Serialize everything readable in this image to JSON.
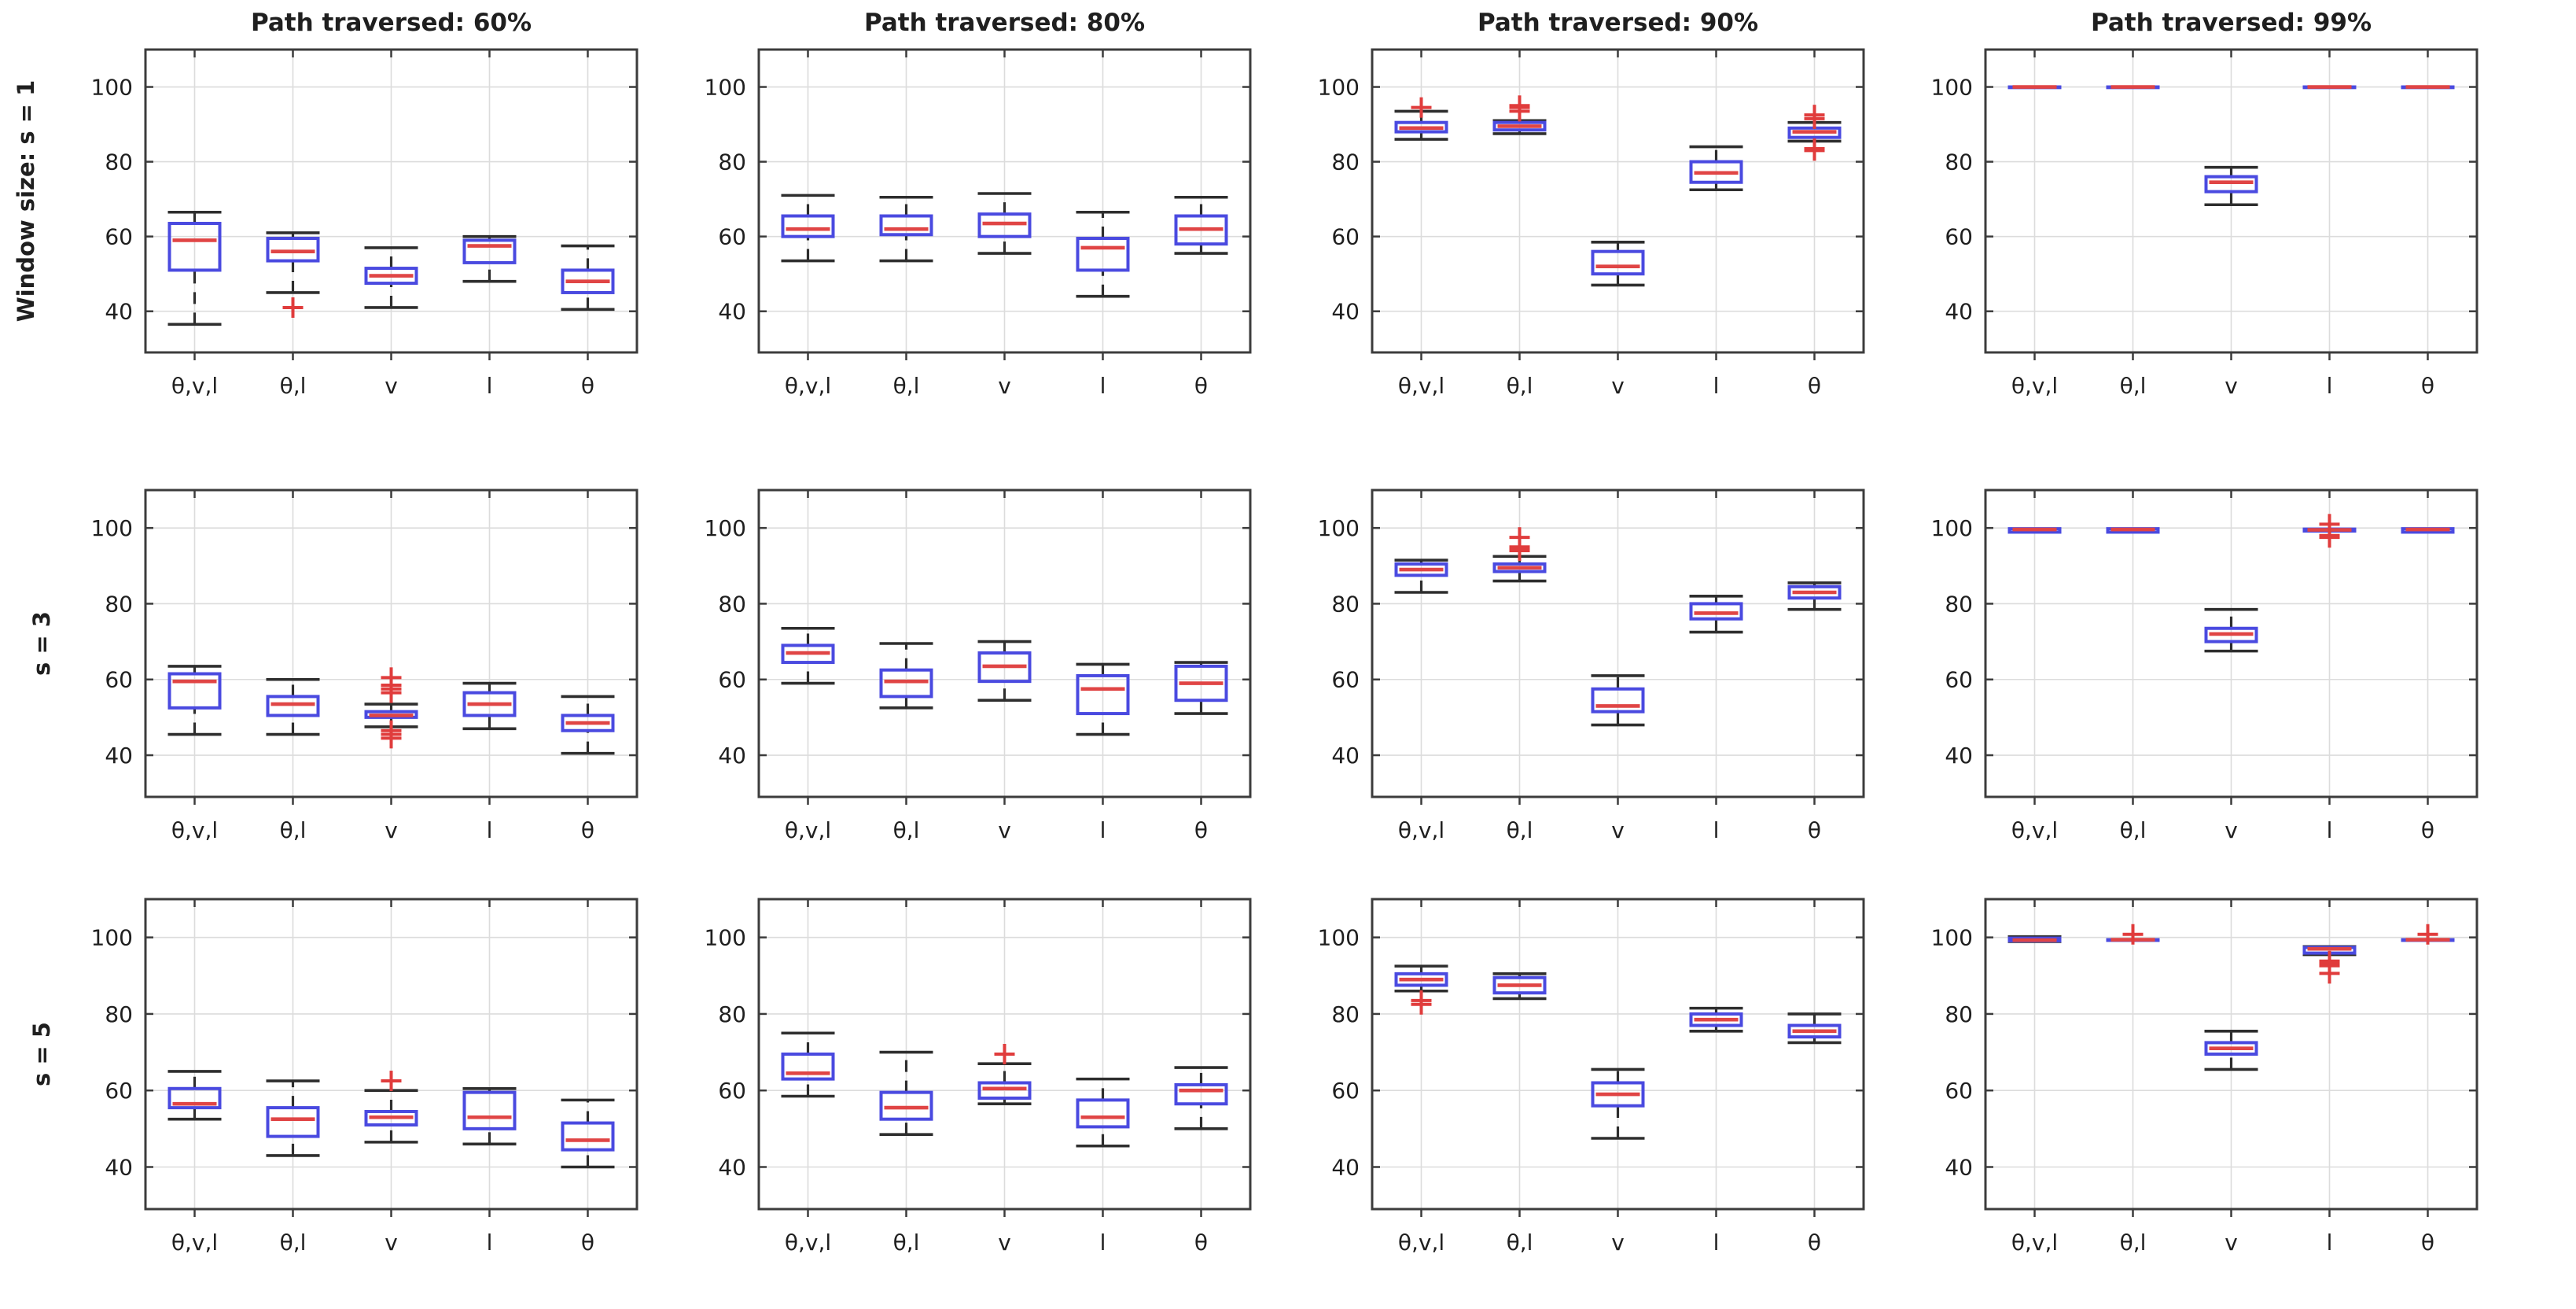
{
  "figure": {
    "background": "#ffffff"
  },
  "chart_data": {
    "type": "boxplot",
    "layout": "3x4 grid of subplots",
    "col_titles": [
      "Path traversed: 60%",
      "Path traversed: 80%",
      "Path traversed: 90%",
      "Path traversed: 99%"
    ],
    "row_labels": [
      "Window size: s = 1",
      "s = 3",
      "s = 5"
    ],
    "categories": [
      "θ,v,l",
      "θ,l",
      "v",
      "l",
      "θ"
    ],
    "ylim": [
      29,
      110
    ],
    "yticks": [
      40,
      60,
      80,
      100
    ],
    "grid": true,
    "colors": {
      "box": "#4a4ae0",
      "median": "#e04545",
      "whisker": "#2e2e2e",
      "cap": "#2e2e2e",
      "outlier": "#e03c3c",
      "gridline": "#dcdcdc",
      "axis": "#3c3c3c",
      "text": "#1f1f1f"
    },
    "subplots": [
      {
        "row": 0,
        "col": 0,
        "row_label": "Window size: s = 1",
        "title": "Path traversed: 60%",
        "boxes": [
          {
            "category": "θ,v,l",
            "lo": 36.5,
            "q1": 51.0,
            "med": 59.0,
            "q3": 63.5,
            "hi": 66.5,
            "out": []
          },
          {
            "category": "θ,l",
            "lo": 45.0,
            "q1": 53.5,
            "med": 56.0,
            "q3": 59.5,
            "hi": 61.0,
            "out": [
              41.0
            ]
          },
          {
            "category": "v",
            "lo": 41.0,
            "q1": 47.5,
            "med": 49.5,
            "q3": 51.5,
            "hi": 57.0,
            "out": []
          },
          {
            "category": "l",
            "lo": 48.0,
            "q1": 53.0,
            "med": 57.5,
            "q3": 59.0,
            "hi": 60.0,
            "out": []
          },
          {
            "category": "θ",
            "lo": 40.5,
            "q1": 45.0,
            "med": 48.0,
            "q3": 51.0,
            "hi": 57.5,
            "out": []
          }
        ]
      },
      {
        "row": 0,
        "col": 1,
        "row_label": "Window size: s = 1",
        "title": "Path traversed: 80%",
        "boxes": [
          {
            "category": "θ,v,l",
            "lo": 53.5,
            "q1": 60.0,
            "med": 62.0,
            "q3": 65.5,
            "hi": 71.0,
            "out": []
          },
          {
            "category": "θ,l",
            "lo": 53.5,
            "q1": 60.5,
            "med": 62.0,
            "q3": 65.5,
            "hi": 70.5,
            "out": []
          },
          {
            "category": "v",
            "lo": 55.5,
            "q1": 60.0,
            "med": 63.5,
            "q3": 66.0,
            "hi": 71.5,
            "out": []
          },
          {
            "category": "l",
            "lo": 44.0,
            "q1": 51.0,
            "med": 57.0,
            "q3": 59.5,
            "hi": 66.5,
            "out": []
          },
          {
            "category": "θ",
            "lo": 55.5,
            "q1": 58.0,
            "med": 62.0,
            "q3": 65.5,
            "hi": 70.5,
            "out": []
          }
        ]
      },
      {
        "row": 0,
        "col": 2,
        "row_label": "Window size: s = 1",
        "title": "Path traversed: 90%",
        "boxes": [
          {
            "category": "θ,v,l",
            "lo": 86.0,
            "q1": 88.0,
            "med": 89.0,
            "q3": 90.5,
            "hi": 93.5,
            "out": [
              94.5
            ]
          },
          {
            "category": "θ,l",
            "lo": 87.5,
            "q1": 88.5,
            "med": 89.5,
            "q3": 90.5,
            "hi": 91.0,
            "out": [
              93.5,
              94.5,
              95.0
            ]
          },
          {
            "category": "v",
            "lo": 47.0,
            "q1": 50.0,
            "med": 52.0,
            "q3": 56.0,
            "hi": 58.5,
            "out": []
          },
          {
            "category": "l",
            "lo": 72.5,
            "q1": 74.5,
            "med": 77.0,
            "q3": 80.0,
            "hi": 84.0,
            "out": []
          },
          {
            "category": "θ",
            "lo": 85.5,
            "q1": 86.5,
            "med": 88.0,
            "q3": 89.0,
            "hi": 90.5,
            "out": [
              92.5,
              91.5,
              83.5,
              83.0
            ]
          }
        ]
      },
      {
        "row": 0,
        "col": 3,
        "row_label": "Window size: s = 1",
        "title": "Path traversed: 99%",
        "boxes": [
          {
            "category": "θ,v,l",
            "lo": 100.0,
            "q1": 100.0,
            "med": 100.0,
            "q3": 100.0,
            "hi": 100.0,
            "out": []
          },
          {
            "category": "θ,l",
            "lo": 100.0,
            "q1": 100.0,
            "med": 100.0,
            "q3": 100.0,
            "hi": 100.0,
            "out": []
          },
          {
            "category": "v",
            "lo": 68.5,
            "q1": 72.0,
            "med": 74.5,
            "q3": 76.0,
            "hi": 78.5,
            "out": []
          },
          {
            "category": "l",
            "lo": 100.0,
            "q1": 100.0,
            "med": 100.0,
            "q3": 100.0,
            "hi": 100.0,
            "out": []
          },
          {
            "category": "θ",
            "lo": 100.0,
            "q1": 100.0,
            "med": 100.0,
            "q3": 100.0,
            "hi": 100.0,
            "out": []
          }
        ]
      },
      {
        "row": 1,
        "col": 0,
        "row_label": "s = 3",
        "title": "Path traversed: 60%",
        "boxes": [
          {
            "category": "θ,v,l",
            "lo": 45.5,
            "q1": 52.5,
            "med": 59.5,
            "q3": 61.5,
            "hi": 63.5,
            "out": []
          },
          {
            "category": "θ,l",
            "lo": 45.5,
            "q1": 50.5,
            "med": 53.5,
            "q3": 55.5,
            "hi": 60.0,
            "out": []
          },
          {
            "category": "v",
            "lo": 47.5,
            "q1": 50.0,
            "med": 50.5,
            "q3": 51.5,
            "hi": 53.5,
            "out": [
              56.5,
              57.5,
              58.5,
              60.5,
              46.5,
              45.5,
              44.5
            ]
          },
          {
            "category": "l",
            "lo": 47.0,
            "q1": 50.5,
            "med": 53.5,
            "q3": 56.5,
            "hi": 59.0,
            "out": []
          },
          {
            "category": "θ",
            "lo": 40.5,
            "q1": 46.5,
            "med": 48.5,
            "q3": 50.5,
            "hi": 55.5,
            "out": []
          }
        ]
      },
      {
        "row": 1,
        "col": 1,
        "row_label": "s = 3",
        "title": "Path traversed: 80%",
        "boxes": [
          {
            "category": "θ,v,l",
            "lo": 59.0,
            "q1": 64.5,
            "med": 67.0,
            "q3": 69.0,
            "hi": 73.5,
            "out": []
          },
          {
            "category": "θ,l",
            "lo": 52.5,
            "q1": 55.5,
            "med": 59.5,
            "q3": 62.5,
            "hi": 69.5,
            "out": []
          },
          {
            "category": "v",
            "lo": 54.5,
            "q1": 59.5,
            "med": 63.5,
            "q3": 67.0,
            "hi": 70.0,
            "out": []
          },
          {
            "category": "l",
            "lo": 45.5,
            "q1": 51.0,
            "med": 57.5,
            "q3": 61.0,
            "hi": 64.0,
            "out": []
          },
          {
            "category": "θ",
            "lo": 51.0,
            "q1": 54.5,
            "med": 59.0,
            "q3": 63.5,
            "hi": 64.5,
            "out": []
          }
        ]
      },
      {
        "row": 1,
        "col": 2,
        "row_label": "s = 3",
        "title": "Path traversed: 90%",
        "boxes": [
          {
            "category": "θ,v,l",
            "lo": 83.0,
            "q1": 87.5,
            "med": 89.0,
            "q3": 90.5,
            "hi": 91.5,
            "out": []
          },
          {
            "category": "θ,l",
            "lo": 86.0,
            "q1": 88.5,
            "med": 89.5,
            "q3": 90.5,
            "hi": 92.5,
            "out": [
              94.0,
              94.5,
              95.0,
              97.5
            ]
          },
          {
            "category": "v",
            "lo": 48.0,
            "q1": 51.5,
            "med": 53.0,
            "q3": 57.5,
            "hi": 61.0,
            "out": []
          },
          {
            "category": "l",
            "lo": 72.5,
            "q1": 76.0,
            "med": 77.5,
            "q3": 80.0,
            "hi": 82.0,
            "out": []
          },
          {
            "category": "θ",
            "lo": 78.5,
            "q1": 81.5,
            "med": 83.0,
            "q3": 84.5,
            "hi": 85.5,
            "out": []
          }
        ]
      },
      {
        "row": 1,
        "col": 3,
        "row_label": "s = 3",
        "title": "Path traversed: 99%",
        "boxes": [
          {
            "category": "θ,v,l",
            "lo": 98.9,
            "q1": 98.9,
            "med": 99.6,
            "q3": 99.8,
            "hi": 99.8,
            "out": []
          },
          {
            "category": "θ,l",
            "lo": 98.9,
            "q1": 98.9,
            "med": 99.6,
            "q3": 99.8,
            "hi": 99.8,
            "out": []
          },
          {
            "category": "v",
            "lo": 67.5,
            "q1": 70.0,
            "med": 72.0,
            "q3": 73.5,
            "hi": 78.5,
            "out": []
          },
          {
            "category": "l",
            "lo": 99.2,
            "q1": 99.2,
            "med": 99.5,
            "q3": 99.7,
            "hi": 99.7,
            "out": [
              101.0,
              98.0,
              97.5
            ]
          },
          {
            "category": "θ",
            "lo": 98.9,
            "q1": 98.9,
            "med": 99.6,
            "q3": 99.8,
            "hi": 99.8,
            "out": []
          }
        ]
      },
      {
        "row": 2,
        "col": 0,
        "row_label": "s = 5",
        "title": "Path traversed: 60%",
        "boxes": [
          {
            "category": "θ,v,l",
            "lo": 52.5,
            "q1": 55.5,
            "med": 56.5,
            "q3": 60.5,
            "hi": 65.0,
            "out": []
          },
          {
            "category": "θ,l",
            "lo": 43.0,
            "q1": 48.0,
            "med": 52.5,
            "q3": 55.5,
            "hi": 62.5,
            "out": []
          },
          {
            "category": "v",
            "lo": 46.5,
            "q1": 51.0,
            "med": 53.0,
            "q3": 54.5,
            "hi": 60.0,
            "out": [
              62.5
            ]
          },
          {
            "category": "l",
            "lo": 46.0,
            "q1": 50.0,
            "med": 53.0,
            "q3": 59.5,
            "hi": 60.5,
            "out": []
          },
          {
            "category": "θ",
            "lo": 40.0,
            "q1": 44.5,
            "med": 47.0,
            "q3": 51.5,
            "hi": 57.5,
            "out": []
          }
        ]
      },
      {
        "row": 2,
        "col": 1,
        "row_label": "s = 5",
        "title": "Path traversed: 80%",
        "boxes": [
          {
            "category": "θ,v,l",
            "lo": 58.5,
            "q1": 63.0,
            "med": 64.5,
            "q3": 69.5,
            "hi": 75.0,
            "out": []
          },
          {
            "category": "θ,l",
            "lo": 48.5,
            "q1": 52.5,
            "med": 55.5,
            "q3": 59.5,
            "hi": 70.0,
            "out": []
          },
          {
            "category": "v",
            "lo": 56.5,
            "q1": 58.0,
            "med": 60.5,
            "q3": 62.0,
            "hi": 67.0,
            "out": [
              69.5
            ]
          },
          {
            "category": "l",
            "lo": 45.5,
            "q1": 50.5,
            "med": 53.0,
            "q3": 57.5,
            "hi": 63.0,
            "out": []
          },
          {
            "category": "θ",
            "lo": 50.0,
            "q1": 56.5,
            "med": 60.0,
            "q3": 61.5,
            "hi": 66.0,
            "out": []
          }
        ]
      },
      {
        "row": 2,
        "col": 2,
        "row_label": "s = 5",
        "title": "Path traversed: 90%",
        "boxes": [
          {
            "category": "θ,v,l",
            "lo": 86.0,
            "q1": 87.5,
            "med": 89.0,
            "q3": 90.5,
            "hi": 92.5,
            "out": [
              83.5,
              82.5
            ]
          },
          {
            "category": "θ,l",
            "lo": 84.0,
            "q1": 85.5,
            "med": 87.5,
            "q3": 89.5,
            "hi": 90.5,
            "out": []
          },
          {
            "category": "v",
            "lo": 47.5,
            "q1": 56.0,
            "med": 59.0,
            "q3": 62.0,
            "hi": 65.5,
            "out": []
          },
          {
            "category": "l",
            "lo": 75.5,
            "q1": 77.0,
            "med": 78.5,
            "q3": 80.0,
            "hi": 81.5,
            "out": []
          },
          {
            "category": "θ",
            "lo": 72.5,
            "q1": 74.0,
            "med": 75.5,
            "q3": 77.0,
            "hi": 80.0,
            "out": []
          }
        ]
      },
      {
        "row": 2,
        "col": 3,
        "row_label": "s = 5",
        "title": "Path traversed: 99%",
        "boxes": [
          {
            "category": "θ,v,l",
            "lo": 98.9,
            "q1": 99.1,
            "med": 99.3,
            "q3": 99.8,
            "hi": 100.2,
            "out": []
          },
          {
            "category": "θ,l",
            "lo": 99.4,
            "q1": 99.4,
            "med": 99.4,
            "q3": 99.4,
            "hi": 99.4,
            "out": [
              100.8
            ]
          },
          {
            "category": "v",
            "lo": 65.5,
            "q1": 69.5,
            "med": 71.0,
            "q3": 72.5,
            "hi": 75.5,
            "out": []
          },
          {
            "category": "l",
            "lo": 95.5,
            "q1": 95.9,
            "med": 97.0,
            "q3": 97.4,
            "hi": 97.6,
            "out": [
              93.8,
              93.2,
              92.6,
              90.6
            ]
          },
          {
            "category": "θ",
            "lo": 99.4,
            "q1": 99.4,
            "med": 99.4,
            "q3": 99.4,
            "hi": 99.4,
            "out": [
              100.8
            ]
          }
        ]
      }
    ]
  }
}
